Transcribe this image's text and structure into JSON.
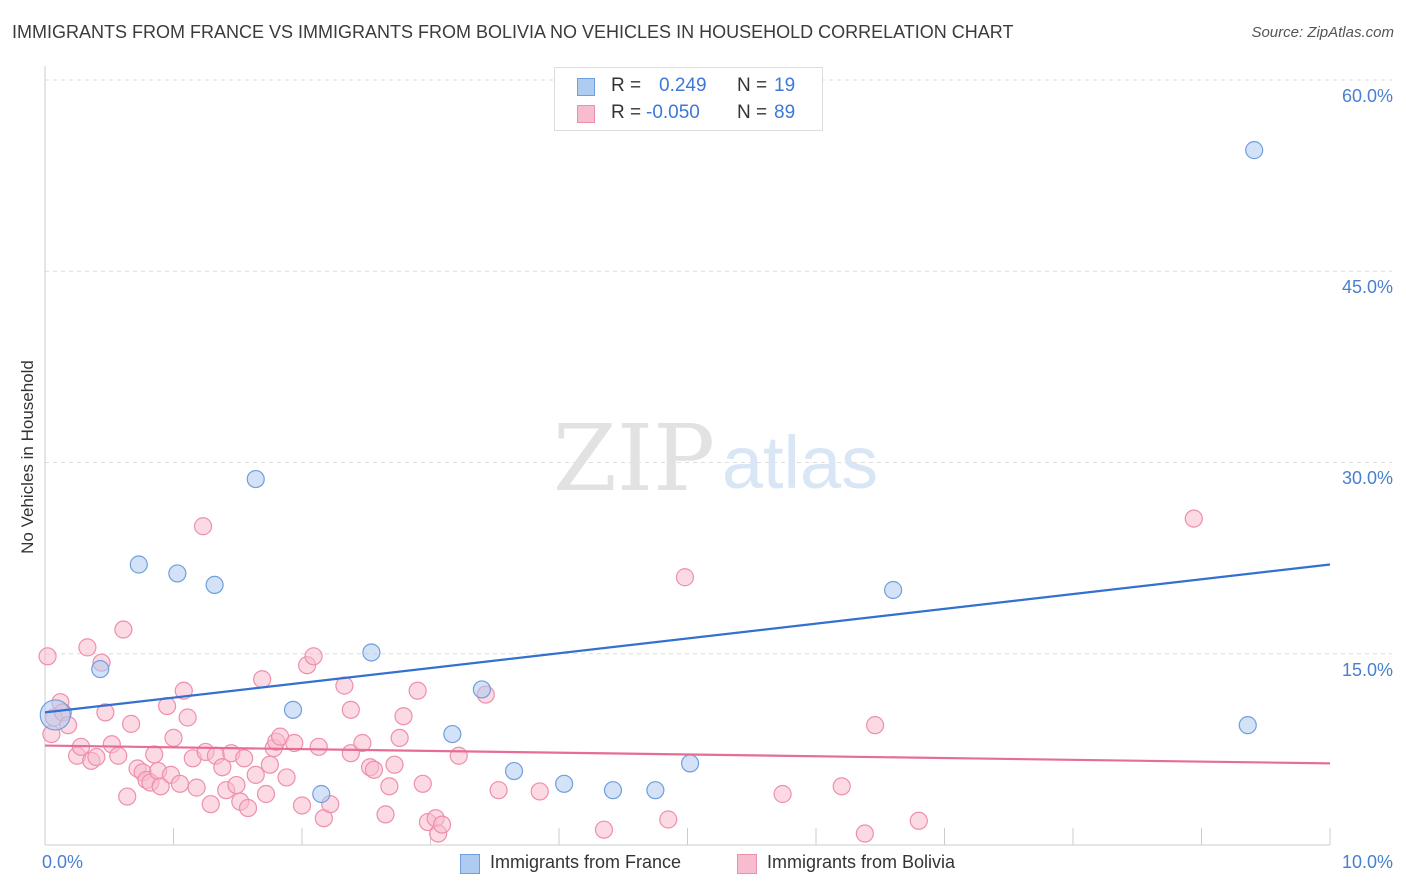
{
  "title": "IMMIGRANTS FROM FRANCE VS IMMIGRANTS FROM BOLIVIA NO VEHICLES IN HOUSEHOLD CORRELATION CHART",
  "source": "Source: ZipAtlas.com",
  "watermark": {
    "zip": "ZIP",
    "atlas": "atlas"
  },
  "legend": {
    "france": {
      "r_label": "R =",
      "r_value": "0.249",
      "n_label": "N =",
      "n_value": "19"
    },
    "bolivia": {
      "r_label": "R =",
      "r_value": "-0.050",
      "n_label": "N =",
      "n_value": "89"
    }
  },
  "colors": {
    "france_fill": "#aecbf0",
    "france_stroke": "#6f9fdc",
    "france_line": "#3370d0",
    "bolivia_fill": "#f7bccd",
    "bolivia_stroke": "#ee8fac",
    "bolivia_line": "#e66d95",
    "tick_label": "#4a7fd0",
    "grid": "#dddddd"
  },
  "chart_data": {
    "type": "scatter",
    "title": "IMMIGRANTS FROM FRANCE VS IMMIGRANTS FROM BOLIVIA NO VEHICLES IN HOUSEHOLD CORRELATION CHART",
    "xlabel": "",
    "ylabel": "No Vehicles in Household",
    "xlim": [
      0,
      10
    ],
    "ylim": [
      0,
      60
    ],
    "x_tick_labels": [
      "0.0%",
      "10.0%"
    ],
    "y_ticks": [
      15,
      30,
      45,
      60
    ],
    "y_tick_labels": [
      "15.0%",
      "30.0%",
      "45.0%",
      "60.0%"
    ],
    "grid": true,
    "series": [
      {
        "name": "Immigrants from France",
        "r": 0.249,
        "n": 19,
        "trend": {
          "x": [
            0,
            10
          ],
          "y": [
            10.4,
            22.0
          ]
        },
        "points": [
          {
            "x": 0.08,
            "y": 10.2,
            "big": true
          },
          {
            "x": 0.43,
            "y": 13.8
          },
          {
            "x": 0.73,
            "y": 22.0
          },
          {
            "x": 1.03,
            "y": 21.3
          },
          {
            "x": 1.32,
            "y": 20.4
          },
          {
            "x": 1.64,
            "y": 28.7
          },
          {
            "x": 1.93,
            "y": 10.6
          },
          {
            "x": 2.15,
            "y": 4.0
          },
          {
            "x": 2.54,
            "y": 15.1
          },
          {
            "x": 3.17,
            "y": 8.7
          },
          {
            "x": 3.4,
            "y": 12.2
          },
          {
            "x": 3.65,
            "y": 5.8
          },
          {
            "x": 4.04,
            "y": 4.8
          },
          {
            "x": 4.42,
            "y": 4.3
          },
          {
            "x": 4.75,
            "y": 4.3
          },
          {
            "x": 5.02,
            "y": 6.4
          },
          {
            "x": 6.6,
            "y": 20.0
          },
          {
            "x": 9.36,
            "y": 9.4
          },
          {
            "x": 9.41,
            "y": 54.5
          }
        ]
      },
      {
        "name": "Immigrants from Bolivia",
        "r": -0.05,
        "n": 89,
        "trend": {
          "x": [
            0,
            10
          ],
          "y": [
            7.8,
            6.4
          ]
        },
        "points": [
          {
            "x": 0.02,
            "y": 14.8
          },
          {
            "x": 0.05,
            "y": 8.7
          },
          {
            "x": 0.07,
            "y": 10.0
          },
          {
            "x": 0.12,
            "y": 11.2
          },
          {
            "x": 0.14,
            "y": 10.4
          },
          {
            "x": 0.18,
            "y": 9.4
          },
          {
            "x": 0.25,
            "y": 7.0
          },
          {
            "x": 0.28,
            "y": 7.7
          },
          {
            "x": 0.33,
            "y": 15.5
          },
          {
            "x": 0.36,
            "y": 6.6
          },
          {
            "x": 0.4,
            "y": 6.9
          },
          {
            "x": 0.44,
            "y": 14.3
          },
          {
            "x": 0.47,
            "y": 10.4
          },
          {
            "x": 0.52,
            "y": 7.9
          },
          {
            "x": 0.57,
            "y": 7.0
          },
          {
            "x": 0.61,
            "y": 16.9
          },
          {
            "x": 0.64,
            "y": 3.8
          },
          {
            "x": 0.67,
            "y": 9.5
          },
          {
            "x": 0.72,
            "y": 6.0
          },
          {
            "x": 0.76,
            "y": 5.7
          },
          {
            "x": 0.79,
            "y": 5.1
          },
          {
            "x": 0.82,
            "y": 4.9
          },
          {
            "x": 0.85,
            "y": 7.1
          },
          {
            "x": 0.88,
            "y": 5.8
          },
          {
            "x": 0.9,
            "y": 4.6
          },
          {
            "x": 0.95,
            "y": 10.9
          },
          {
            "x": 0.98,
            "y": 5.5
          },
          {
            "x": 1.0,
            "y": 8.4
          },
          {
            "x": 1.05,
            "y": 4.8
          },
          {
            "x": 1.08,
            "y": 12.1
          },
          {
            "x": 1.11,
            "y": 10.0
          },
          {
            "x": 1.15,
            "y": 6.8
          },
          {
            "x": 1.18,
            "y": 4.5
          },
          {
            "x": 1.23,
            "y": 25.0
          },
          {
            "x": 1.25,
            "y": 7.3
          },
          {
            "x": 1.29,
            "y": 3.2
          },
          {
            "x": 1.33,
            "y": 7.0
          },
          {
            "x": 1.38,
            "y": 6.1
          },
          {
            "x": 1.41,
            "y": 4.3
          },
          {
            "x": 1.45,
            "y": 7.2
          },
          {
            "x": 1.49,
            "y": 4.7
          },
          {
            "x": 1.52,
            "y": 3.4
          },
          {
            "x": 1.55,
            "y": 6.8
          },
          {
            "x": 1.58,
            "y": 2.9
          },
          {
            "x": 1.64,
            "y": 5.5
          },
          {
            "x": 1.69,
            "y": 13.0
          },
          {
            "x": 1.72,
            "y": 4.0
          },
          {
            "x": 1.75,
            "y": 6.3
          },
          {
            "x": 1.78,
            "y": 7.6
          },
          {
            "x": 1.8,
            "y": 8.1
          },
          {
            "x": 1.83,
            "y": 8.5
          },
          {
            "x": 1.88,
            "y": 5.3
          },
          {
            "x": 1.94,
            "y": 8.0
          },
          {
            "x": 2.0,
            "y": 3.1
          },
          {
            "x": 2.04,
            "y": 14.1
          },
          {
            "x": 2.09,
            "y": 14.8
          },
          {
            "x": 2.13,
            "y": 7.7
          },
          {
            "x": 2.17,
            "y": 2.1
          },
          {
            "x": 2.22,
            "y": 3.2
          },
          {
            "x": 2.33,
            "y": 12.5
          },
          {
            "x": 2.38,
            "y": 7.2
          },
          {
            "x": 2.38,
            "y": 10.6
          },
          {
            "x": 2.47,
            "y": 8.0
          },
          {
            "x": 2.53,
            "y": 6.1
          },
          {
            "x": 2.56,
            "y": 5.9
          },
          {
            "x": 2.65,
            "y": 2.4
          },
          {
            "x": 2.68,
            "y": 4.6
          },
          {
            "x": 2.72,
            "y": 6.3
          },
          {
            "x": 2.76,
            "y": 8.4
          },
          {
            "x": 2.79,
            "y": 10.1
          },
          {
            "x": 2.9,
            "y": 12.1
          },
          {
            "x": 2.94,
            "y": 4.8
          },
          {
            "x": 2.98,
            "y": 1.8
          },
          {
            "x": 3.04,
            "y": 2.1
          },
          {
            "x": 3.06,
            "y": 0.9
          },
          {
            "x": 3.09,
            "y": 1.6
          },
          {
            "x": 3.22,
            "y": 7.0
          },
          {
            "x": 3.43,
            "y": 11.8
          },
          {
            "x": 3.53,
            "y": 4.3
          },
          {
            "x": 3.85,
            "y": 4.2
          },
          {
            "x": 4.35,
            "y": 1.2
          },
          {
            "x": 4.85,
            "y": 2.0
          },
          {
            "x": 4.98,
            "y": 21.0
          },
          {
            "x": 5.74,
            "y": 4.0
          },
          {
            "x": 6.2,
            "y": 4.6
          },
          {
            "x": 6.38,
            "y": 0.9
          },
          {
            "x": 6.46,
            "y": 9.4
          },
          {
            "x": 6.8,
            "y": 1.9
          },
          {
            "x": 8.94,
            "y": 25.6
          }
        ]
      }
    ]
  },
  "bottom_legend": [
    "Immigrants from France",
    "Immigrants from Bolivia"
  ]
}
